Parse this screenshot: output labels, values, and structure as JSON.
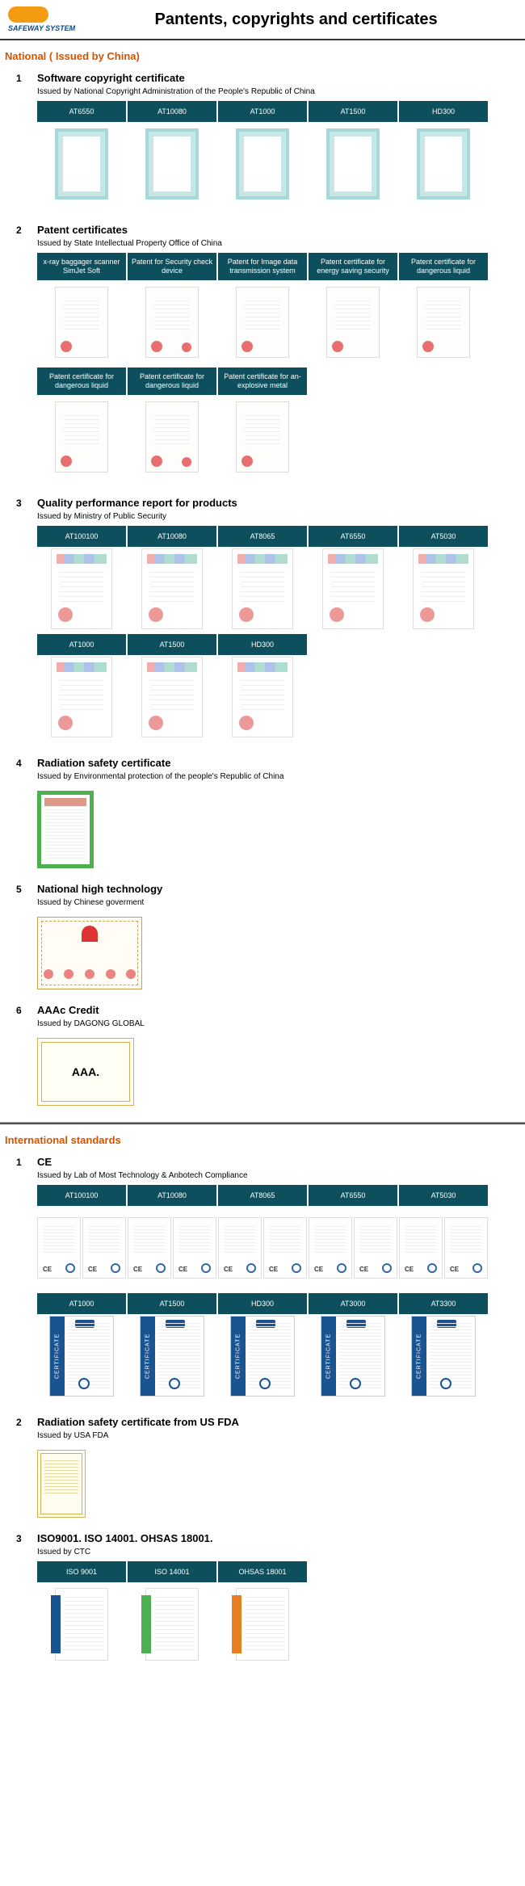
{
  "brand": {
    "name": "SAFEWAY SYSTEM"
  },
  "page_title": "Pantents, copyrights and certificates",
  "colors": {
    "accent": "#d35400",
    "tab_bg": "#0d4f5c",
    "tab_text": "#ffffff"
  },
  "group_national": {
    "title": "National ( Issued by China)",
    "sections": {
      "s1": {
        "num": "1",
        "title": "Software copyright certificate",
        "issuer": "Issued by National Copyright Administration of the People's Republic of China",
        "tabs": [
          "AT6550",
          "AT10080",
          "AT1000",
          "AT1500",
          "HD300"
        ]
      },
      "s2": {
        "num": "2",
        "title": "Patent certificates",
        "issuer": "Issued by State Intellectual Property Office of China",
        "tabs_r1": [
          "x-ray baggager scanner SimJet Soft",
          "Patent for Security check device",
          "Patent for Image data transmission system",
          "Patent certificate for energy saving security",
          "Patent certificate for dangerous liquid"
        ],
        "tabs_r2": [
          "Patent certificate for dangerous liquid",
          "Patent certificate for dangerous liquid",
          "Patent certificate for an-explosive metal"
        ]
      },
      "s3": {
        "num": "3",
        "title": "Quality performance report for products",
        "issuer": "Issued by Ministry of Public Security",
        "tabs_r1": [
          "AT100100",
          "AT10080",
          "AT8065",
          "AT6550",
          "AT5030"
        ],
        "tabs_r2": [
          "AT1000",
          "AT1500",
          "HD300"
        ]
      },
      "s4": {
        "num": "4",
        "title": "Radiation safety certificate",
        "issuer": "Issued by Environmental protection of the people's Republic of China"
      },
      "s5": {
        "num": "5",
        "title": "National high technology",
        "issuer": "Issued by Chinese goverment"
      },
      "s6": {
        "num": "6",
        "title": "AAAc Credit",
        "issuer": "Issued by DAGONG GLOBAL",
        "aaa_label": "AAA."
      }
    }
  },
  "group_intl": {
    "title": "International standards",
    "sections": {
      "s1": {
        "num": "1",
        "title": "CE",
        "issuer": "Issued by Lab of Most Technology & Anbotech Compliance",
        "tabs_r1": [
          "AT100100",
          "AT10080",
          "AT8065",
          "AT6550",
          "AT5030"
        ],
        "tabs_r2": [
          "AT1000",
          "AT1500",
          "HD300",
          "AT3000",
          "AT3300"
        ]
      },
      "s2": {
        "num": "2",
        "title": "Radiation safety certificate from US FDA",
        "issuer": "Issued by USA FDA"
      },
      "s3": {
        "num": "3",
        "title": "ISO9001. ISO 14001. OHSAS 18001.",
        "issuer": "Issued by CTC",
        "tabs": [
          "ISO 9001",
          "ISO 14001",
          "OHSAS 18001"
        ]
      }
    }
  }
}
